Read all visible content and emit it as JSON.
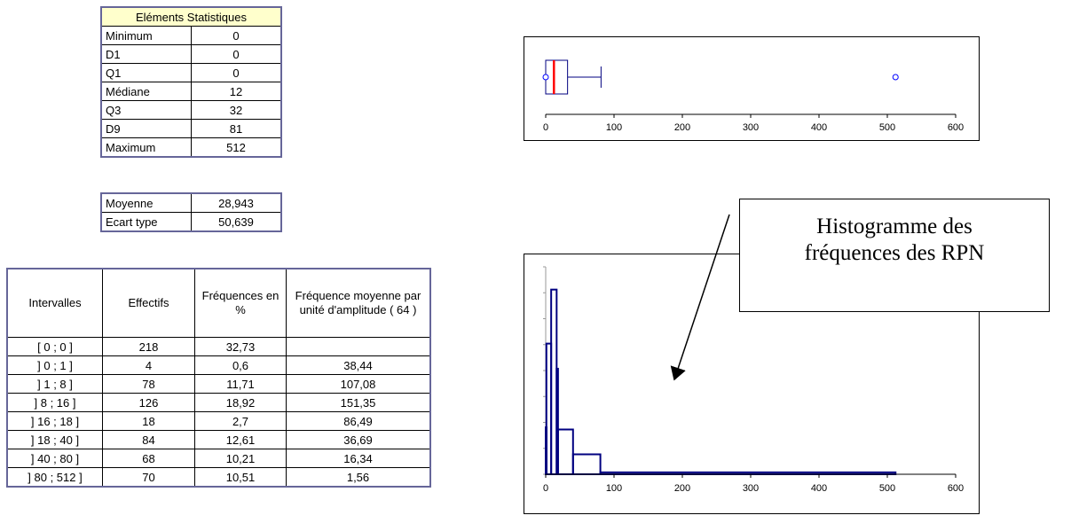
{
  "stats_table": {
    "title": "Eléments Statistiques",
    "rows": [
      {
        "label": "Minimum",
        "value": "0"
      },
      {
        "label": "D1",
        "value": "0"
      },
      {
        "label": "Q1",
        "value": "0"
      },
      {
        "label": "Médiane",
        "value": "12"
      },
      {
        "label": "Q3",
        "value": "32"
      },
      {
        "label": "D9",
        "value": "81"
      },
      {
        "label": "Maximum",
        "value": "512"
      }
    ]
  },
  "mean_table": {
    "rows": [
      {
        "label": "Moyenne",
        "value": "28,943"
      },
      {
        "label": "Ecart type",
        "value": "50,639"
      }
    ]
  },
  "freq_table": {
    "headers": [
      "Intervalles",
      "Effectifs",
      "Fréquences en %",
      "Fréquence moyenne par unité d'amplitude ( 64 )"
    ],
    "rows": [
      [
        "[ 0 ; 0 ]",
        "218",
        "32,73",
        ""
      ],
      [
        "] 0 ; 1 ]",
        "4",
        "0,6",
        "38,44"
      ],
      [
        "] 1 ; 8 ]",
        "78",
        "11,71",
        "107,08"
      ],
      [
        "] 8 ; 16 ]",
        "126",
        "18,92",
        "151,35"
      ],
      [
        "] 16 ; 18 ]",
        "18",
        "2,7",
        "86,49"
      ],
      [
        "] 18 ; 40 ]",
        "84",
        "12,61",
        "36,69"
      ],
      [
        "] 40 ; 80 ]",
        "68",
        "10,21",
        "16,34"
      ],
      [
        "] 80 ; 512 ]",
        "70",
        "10,51",
        "1,56"
      ]
    ]
  },
  "callout": {
    "line1": "Histogramme des",
    "line2": "fréquences des RPN"
  },
  "chart_data": [
    {
      "type": "boxplot",
      "min": 0,
      "q1": 0,
      "median": 12,
      "q3": 32,
      "whisker_high": 81,
      "outliers": [
        0,
        512
      ],
      "xlim": [
        0,
        600
      ],
      "xticks": [
        0,
        100,
        200,
        300,
        400,
        500,
        600
      ],
      "colors": {
        "box": "#000080",
        "median": "#ff0000",
        "outlier": "#0000ff"
      }
    },
    {
      "type": "histogram",
      "bins": [
        {
          "from": 0,
          "to": 1,
          "density": 38.44
        },
        {
          "from": 1,
          "to": 8,
          "density": 107.08
        },
        {
          "from": 8,
          "to": 16,
          "density": 151.35
        },
        {
          "from": 16,
          "to": 18,
          "density": 86.49
        },
        {
          "from": 18,
          "to": 40,
          "density": 36.69
        },
        {
          "from": 40,
          "to": 80,
          "density": 16.34
        },
        {
          "from": 80,
          "to": 512,
          "density": 1.56
        }
      ],
      "xlim": [
        0,
        600
      ],
      "ylim": [
        0,
        170
      ],
      "xticks": [
        0,
        100,
        200,
        300,
        400,
        500,
        600
      ],
      "colors": {
        "bars": "#000080"
      }
    }
  ]
}
